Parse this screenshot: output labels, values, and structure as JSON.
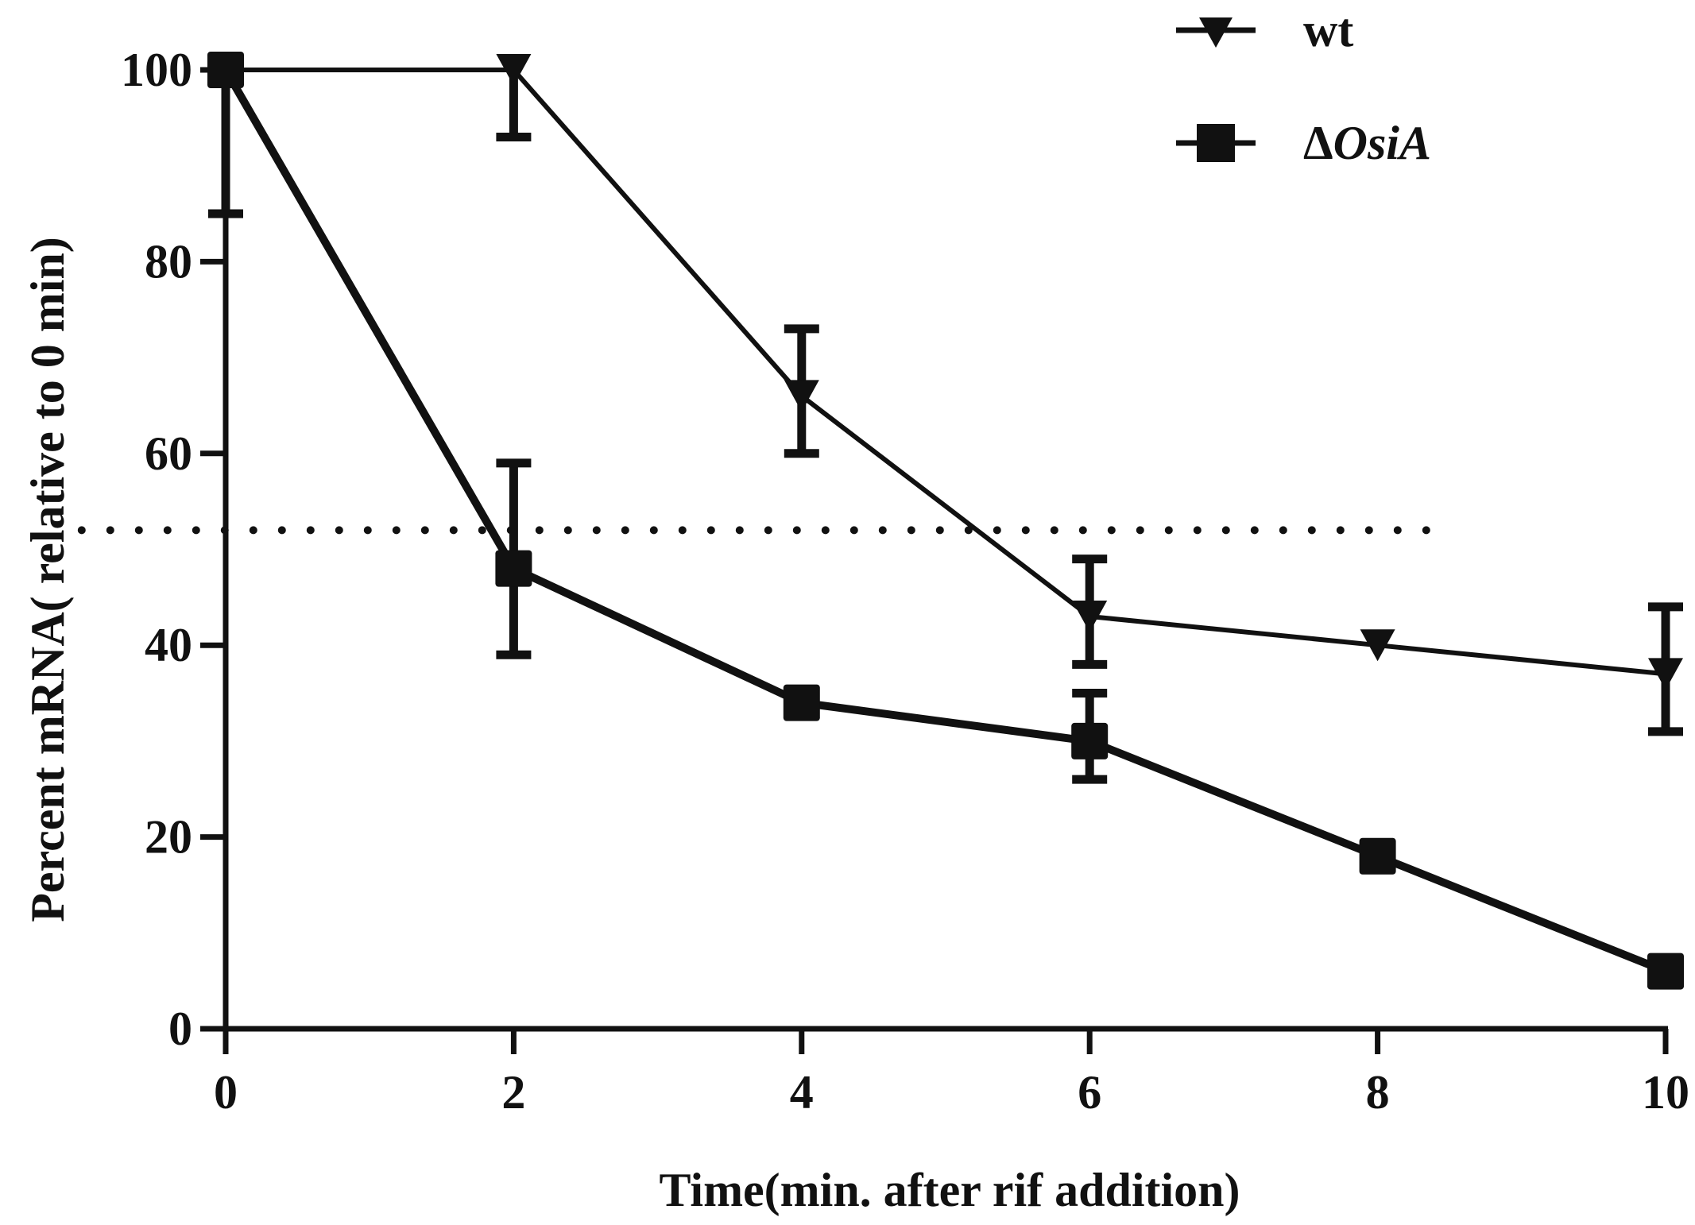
{
  "chart_data": {
    "type": "line",
    "title": "",
    "xlabel": "Time(min. after rif addition)",
    "ylabel": "Percent mRNA( relative to 0 min)",
    "xlim": [
      0,
      10
    ],
    "ylim": [
      0,
      100
    ],
    "x_ticks": [
      0,
      2,
      4,
      6,
      8,
      10
    ],
    "y_ticks": [
      0,
      20,
      40,
      60,
      80,
      100
    ],
    "x_tick_labels": [
      "0",
      "2",
      "4",
      "6",
      "8",
      "10"
    ],
    "y_tick_labels": [
      "0",
      "20",
      "40",
      "60",
      "80",
      "100"
    ],
    "grid": false,
    "legend_position": "top-right",
    "reference_line": {
      "y": 52,
      "x_from": -1.0,
      "x_to": 8.4,
      "style": "dotted"
    },
    "series": [
      {
        "name": "wt",
        "marker": "triangle-down",
        "x": [
          0,
          2,
          4,
          6,
          8,
          10
        ],
        "values": [
          100,
          100,
          66,
          43,
          40,
          37
        ],
        "err_low": [
          0,
          7,
          6,
          5,
          0,
          6
        ],
        "err_high": [
          0,
          0,
          7,
          6,
          0,
          7
        ]
      },
      {
        "name": "ΔOsiA",
        "legend_symbol": "Δ",
        "legend_name": "OsiA",
        "marker": "square",
        "x": [
          0,
          2,
          4,
          6,
          8,
          10
        ],
        "values": [
          100,
          48,
          34,
          30,
          18,
          6
        ],
        "err_low": [
          15,
          9,
          0,
          4,
          0,
          0
        ],
        "err_high": [
          0,
          11,
          0,
          5,
          0,
          0
        ]
      }
    ]
  },
  "colors": {
    "ink": "#111111",
    "background": "#ffffff"
  }
}
